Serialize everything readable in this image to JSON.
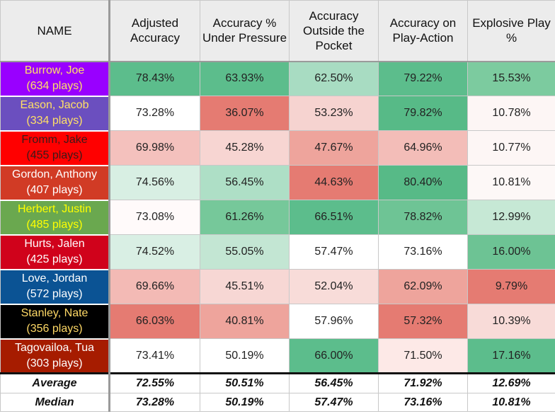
{
  "table": {
    "headers": [
      "NAME",
      "Adjusted Accuracy",
      "Accuracy % Under Pressure",
      "Accuracy Outside the Pocket",
      "Accuracy on Play-Action",
      "Explosive Play %"
    ],
    "rows": [
      {
        "name": "Burrow, Joe",
        "plays": "(634 plays)",
        "name_bg": "#9900ff",
        "name_color": "#ffe066",
        "values": [
          "78.43%",
          "63.93%",
          "62.50%",
          "79.22%",
          "15.53%"
        ],
        "cell_colors": [
          "#5cbd8c",
          "#5cbd8c",
          "#a8dcc2",
          "#5cbd8c",
          "#7ccb9f"
        ]
      },
      {
        "name": "Eason, Jacob",
        "plays": "(334 plays)",
        "name_bg": "#6b4fbf",
        "name_color": "#ffe066",
        "values": [
          "73.28%",
          "36.07%",
          "53.23%",
          "79.82%",
          "10.78%"
        ],
        "cell_colors": [
          "#ffffff",
          "#e57b72",
          "#f6d3d0",
          "#57ba87",
          "#fdf6f5"
        ]
      },
      {
        "name": "Fromm, Jake",
        "plays": "(455 plays)",
        "name_bg": "#ff0000",
        "name_color": "#3a1a1a",
        "values": [
          "69.98%",
          "45.28%",
          "47.67%",
          "64.96%",
          "10.77%"
        ],
        "cell_colors": [
          "#f4c1bd",
          "#f7d5d2",
          "#eea49c",
          "#f3bdb8",
          "#fdf6f5"
        ]
      },
      {
        "name": "Gordon, Anthony",
        "plays": "(407 plays)",
        "name_bg": "#d13b25",
        "name_color": "#ffffff",
        "values": [
          "74.56%",
          "56.45%",
          "44.63%",
          "80.40%",
          "10.81%"
        ],
        "cell_colors": [
          "#d8efe3",
          "#aedfc6",
          "#e57b72",
          "#57ba87",
          "#fdf8f7"
        ]
      },
      {
        "name": "Herbert, Justin",
        "plays": "(485 plays)",
        "name_bg": "#6aa84f",
        "name_color": "#ffff00",
        "values": [
          "73.08%",
          "61.26%",
          "66.51%",
          "78.82%",
          "12.99%"
        ],
        "cell_colors": [
          "#fffafa",
          "#76c89a",
          "#5cbd8c",
          "#6ec495",
          "#c6e8d5"
        ]
      },
      {
        "name": "Hurts, Jalen",
        "plays": "(425 plays)",
        "name_bg": "#d0021b",
        "name_color": "#ffffff",
        "values": [
          "74.52%",
          "55.05%",
          "57.47%",
          "73.16%",
          "16.00%"
        ],
        "cell_colors": [
          "#d9efe4",
          "#c3e6d3",
          "#ffffff",
          "#ffffff",
          "#6dc394"
        ]
      },
      {
        "name": "Love, Jordan",
        "plays": "(572 plays)",
        "name_bg": "#0b5394",
        "name_color": "#ffffff",
        "values": [
          "69.66%",
          "45.51%",
          "52.04%",
          "62.09%",
          "9.79%"
        ],
        "cell_colors": [
          "#f3bab5",
          "#f7d7d4",
          "#f8dcd9",
          "#eea49c",
          "#e57b72"
        ]
      },
      {
        "name": "Stanley, Nate",
        "plays": "(356 plays)",
        "name_bg": "#000000",
        "name_color": "#ffd966",
        "values": [
          "66.03%",
          "40.81%",
          "57.96%",
          "57.32%",
          "10.39%"
        ],
        "cell_colors": [
          "#e57b72",
          "#eea49c",
          "#ffffff",
          "#e57b72",
          "#f8dbd8"
        ]
      },
      {
        "name": "Tagovailoa, Tua",
        "plays": "(303 plays)",
        "name_bg": "#a61c00",
        "name_color": "#ffffff",
        "values": [
          "73.41%",
          "50.19%",
          "66.00%",
          "71.50%",
          "17.16%"
        ],
        "cell_colors": [
          "#ffffff",
          "#ffffff",
          "#5cbd8c",
          "#fde9e7",
          "#5cbd8c"
        ]
      }
    ],
    "summary": [
      {
        "label": "Average",
        "values": [
          "72.55%",
          "50.51%",
          "56.45%",
          "71.92%",
          "12.69%"
        ]
      },
      {
        "label": "Median",
        "values": [
          "73.28%",
          "50.19%",
          "57.47%",
          "73.16%",
          "10.81%"
        ]
      }
    ]
  },
  "chart_data": {
    "type": "table",
    "columns": [
      "NAME",
      "Adjusted Accuracy",
      "Accuracy % Under Pressure",
      "Accuracy Outside the Pocket",
      "Accuracy on Play-Action",
      "Explosive Play %"
    ],
    "rows": [
      [
        "Burrow, Joe (634 plays)",
        78.43,
        63.93,
        62.5,
        79.22,
        15.53
      ],
      [
        "Eason, Jacob (334 plays)",
        73.28,
        36.07,
        53.23,
        79.82,
        10.78
      ],
      [
        "Fromm, Jake (455 plays)",
        69.98,
        45.28,
        47.67,
        64.96,
        10.77
      ],
      [
        "Gordon, Anthony (407 plays)",
        74.56,
        56.45,
        44.63,
        80.4,
        10.81
      ],
      [
        "Herbert, Justin (485 plays)",
        73.08,
        61.26,
        66.51,
        78.82,
        12.99
      ],
      [
        "Hurts, Jalen (425 plays)",
        74.52,
        55.05,
        57.47,
        73.16,
        16.0
      ],
      [
        "Love, Jordan (572 plays)",
        69.66,
        45.51,
        52.04,
        62.09,
        9.79
      ],
      [
        "Stanley, Nate (356 plays)",
        66.03,
        40.81,
        57.96,
        57.32,
        10.39
      ],
      [
        "Tagovailoa, Tua (303 plays)",
        73.41,
        50.19,
        66.0,
        71.5,
        17.16
      ]
    ],
    "summary_rows": [
      [
        "Average",
        72.55,
        50.51,
        56.45,
        71.92,
        12.69
      ],
      [
        "Median",
        73.28,
        50.19,
        57.47,
        73.16,
        10.81
      ]
    ]
  }
}
